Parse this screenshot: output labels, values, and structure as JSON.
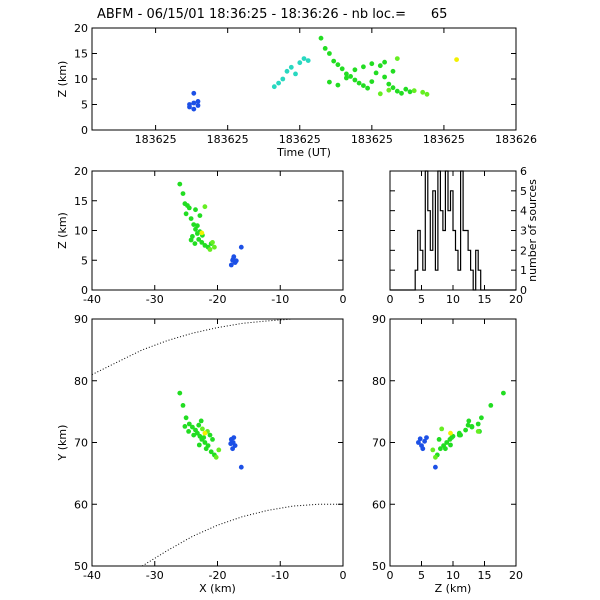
{
  "title": "ABFM - 06/15/01 18:36:25 - 18:36:26 - nb loc.=      65",
  "colors": {
    "blue": "#1c50e6",
    "cyan": "#28d8c0",
    "green": "#22dd22",
    "lgreen": "#66ee22",
    "yellow": "#f2f000"
  },
  "chart_data": [
    {
      "id": "time_z",
      "type": "scatter",
      "xlabel": "Time (UT)",
      "ylabel": "Z (km)",
      "xlim": [
        0,
        1
      ],
      "ylim": [
        0,
        20
      ],
      "x_ticklabels": [
        "183625",
        "183625",
        "183625",
        "183625",
        "183625",
        "183626"
      ],
      "y_ticks": [
        0,
        5,
        10,
        15,
        20
      ],
      "series": [
        {
          "color_key": "blue",
          "points": [
            [
              0.24,
              7.2
            ],
            [
              0.24,
              5.3
            ],
            [
              0.25,
              4.8
            ],
            [
              0.23,
              4.5
            ],
            [
              0.25,
              5.6
            ],
            [
              0.24,
              4.1
            ],
            [
              0.23,
              5.0
            ]
          ]
        },
        {
          "color_key": "cyan",
          "points": [
            [
              0.43,
              8.5
            ],
            [
              0.44,
              9.2
            ],
            [
              0.45,
              10.0
            ],
            [
              0.46,
              11.5
            ],
            [
              0.47,
              12.3
            ],
            [
              0.49,
              13.2
            ],
            [
              0.5,
              14.0
            ],
            [
              0.51,
              13.6
            ],
            [
              0.48,
              11.0
            ]
          ]
        },
        {
          "color_key": "green",
          "points": [
            [
              0.54,
              18.0
            ],
            [
              0.55,
              16.0
            ],
            [
              0.56,
              15.0
            ],
            [
              0.57,
              13.5
            ],
            [
              0.58,
              12.8
            ],
            [
              0.59,
              12.0
            ],
            [
              0.6,
              11.0
            ],
            [
              0.61,
              10.5
            ],
            [
              0.62,
              9.8
            ],
            [
              0.63,
              9.2
            ],
            [
              0.64,
              8.7
            ],
            [
              0.65,
              8.2
            ],
            [
              0.66,
              9.5
            ],
            [
              0.67,
              11.2
            ],
            [
              0.68,
              12.6
            ],
            [
              0.69,
              10.4
            ],
            [
              0.7,
              9.0
            ],
            [
              0.71,
              8.3
            ],
            [
              0.72,
              7.6
            ],
            [
              0.73,
              7.2
            ],
            [
              0.56,
              9.4
            ],
            [
              0.58,
              8.8
            ],
            [
              0.6,
              10.2
            ],
            [
              0.62,
              11.8
            ],
            [
              0.64,
              12.4
            ],
            [
              0.66,
              13.0
            ],
            [
              0.69,
              13.3
            ],
            [
              0.71,
              11.5
            ],
            [
              0.74,
              8.0
            ],
            [
              0.75,
              7.5
            ]
          ]
        },
        {
          "color_key": "lgreen",
          "points": [
            [
              0.76,
              7.7
            ],
            [
              0.78,
              7.4
            ],
            [
              0.79,
              7.0
            ],
            [
              0.72,
              14.0
            ],
            [
              0.7,
              7.8
            ],
            [
              0.68,
              7.1
            ]
          ]
        },
        {
          "color_key": "yellow",
          "points": [
            [
              0.86,
              13.8
            ]
          ]
        }
      ]
    },
    {
      "id": "x_z",
      "type": "scatter",
      "xlabel": "",
      "ylabel": "Z (km)",
      "xlim": [
        -40,
        0
      ],
      "ylim": [
        0,
        20
      ],
      "x_ticks": [
        -40,
        -30,
        -20,
        -10,
        0
      ],
      "y_ticks": [
        0,
        5,
        10,
        15,
        20
      ],
      "series": [
        {
          "color_key": "blue",
          "points": [
            [
              -17.5,
              5.2
            ],
            [
              -17.2,
              4.6
            ],
            [
              -17.8,
              4.2
            ],
            [
              -17.4,
              5.6
            ],
            [
              -16.2,
              7.2
            ],
            [
              -17.0,
              4.9
            ],
            [
              -17.6,
              5.0
            ]
          ]
        },
        {
          "color_key": "green",
          "points": [
            [
              -26.0,
              17.8
            ],
            [
              -25.5,
              16.2
            ],
            [
              -25.2,
              14.5
            ],
            [
              -24.5,
              13.8
            ],
            [
              -24.2,
              12.0
            ],
            [
              -23.8,
              11.0
            ],
            [
              -23.5,
              10.2
            ],
            [
              -23.2,
              9.5
            ],
            [
              -24.0,
              9.0
            ],
            [
              -23.0,
              8.5
            ],
            [
              -22.5,
              8.0
            ],
            [
              -22.0,
              7.5
            ],
            [
              -21.5,
              7.2
            ],
            [
              -21.0,
              7.8
            ],
            [
              -22.8,
              12.5
            ],
            [
              -23.5,
              13.5
            ],
            [
              -24.8,
              14.2
            ],
            [
              -25.0,
              12.8
            ],
            [
              -23.2,
              10.8
            ],
            [
              -22.8,
              9.8
            ],
            [
              -22.4,
              9.2
            ],
            [
              -23.6,
              7.8
            ],
            [
              -24.2,
              8.4
            ]
          ]
        },
        {
          "color_key": "lgreen",
          "points": [
            [
              -20.5,
              7.2
            ],
            [
              -21.2,
              6.8
            ],
            [
              -22.0,
              14.0
            ],
            [
              -20.8,
              8.0
            ]
          ]
        },
        {
          "color_key": "yellow",
          "points": [
            [
              -22.5,
              9.6
            ]
          ]
        }
      ]
    },
    {
      "id": "histogram",
      "type": "bar",
      "xlabel": "",
      "ylabel": "number of sources",
      "xlim": [
        0,
        20
      ],
      "ylim": [
        0,
        6
      ],
      "x_ticks": [
        0,
        5,
        10,
        15,
        20
      ],
      "y_ticks": [
        0,
        1,
        2,
        3,
        4,
        5,
        6
      ],
      "bin_width": 0.4,
      "bin_start": 0,
      "counts": [
        0,
        0,
        0,
        0,
        0,
        0,
        0,
        0,
        0,
        0,
        1,
        3,
        2,
        1,
        6,
        4,
        2,
        5,
        1,
        6,
        4,
        3,
        6,
        4,
        5,
        3,
        2,
        1,
        6,
        3,
        3,
        2,
        1,
        0,
        2,
        1,
        0,
        0,
        0,
        0,
        0,
        0,
        0,
        0,
        0,
        0,
        0,
        0,
        0,
        0
      ]
    },
    {
      "id": "x_y",
      "type": "scatter",
      "xlabel": "X (km)",
      "ylabel": "Y (km)",
      "xlim": [
        -40,
        0
      ],
      "ylim": [
        50,
        90
      ],
      "x_ticks": [
        -40,
        -30,
        -20,
        -10,
        0
      ],
      "y_ticks": [
        50,
        60,
        70,
        80,
        90
      ],
      "arc_upper": [
        [
          -40,
          81
        ],
        [
          -36,
          83
        ],
        [
          -32,
          85
        ],
        [
          -28,
          86.5
        ],
        [
          -24,
          87.7
        ],
        [
          -20,
          88.6
        ],
        [
          -16,
          89.3
        ],
        [
          -12,
          89.7
        ],
        [
          -8,
          90
        ]
      ],
      "arc_lower": [
        [
          -32,
          50
        ],
        [
          -28,
          52.5
        ],
        [
          -24,
          54.8
        ],
        [
          -20,
          56.6
        ],
        [
          -16,
          58
        ],
        [
          -12,
          59
        ],
        [
          -8,
          59.7
        ],
        [
          -4,
          60
        ],
        [
          0,
          60
        ]
      ],
      "series": [
        {
          "color_key": "blue",
          "points": [
            [
              -17.8,
              70.5
            ],
            [
              -17.5,
              70.0
            ],
            [
              -17.2,
              69.5
            ],
            [
              -17.6,
              69.0
            ],
            [
              -17.4,
              70.8
            ],
            [
              -16.2,
              66.0
            ],
            [
              -17.9,
              69.8
            ]
          ]
        },
        {
          "color_key": "green",
          "points": [
            [
              -26.0,
              78.0
            ],
            [
              -25.5,
              76.0
            ],
            [
              -25.0,
              74.0
            ],
            [
              -24.5,
              73.0
            ],
            [
              -24.0,
              72.5
            ],
            [
              -23.5,
              72.0
            ],
            [
              -23.2,
              71.5
            ],
            [
              -22.8,
              71.0
            ],
            [
              -22.5,
              70.5
            ],
            [
              -22.0,
              70.0
            ],
            [
              -21.5,
              69.5
            ],
            [
              -21.0,
              68.5
            ],
            [
              -20.5,
              68.0
            ],
            [
              -22.6,
              73.5
            ],
            [
              -23.8,
              71.2
            ],
            [
              -22.2,
              70.8
            ],
            [
              -24.6,
              71.8
            ],
            [
              -21.8,
              69.0
            ],
            [
              -23.0,
              72.8
            ],
            [
              -20.8,
              70.5
            ],
            [
              -25.2,
              72.6
            ],
            [
              -22.9,
              69.6
            ],
            [
              -21.2,
              71.2
            ]
          ]
        },
        {
          "color_key": "lgreen",
          "points": [
            [
              -20.2,
              67.6
            ],
            [
              -19.8,
              68.8
            ],
            [
              -21.6,
              71.8
            ],
            [
              -22.4,
              72.2
            ]
          ]
        },
        {
          "color_key": "yellow",
          "points": [
            [
              -22.0,
              71.5
            ]
          ]
        }
      ]
    },
    {
      "id": "z_y",
      "type": "scatter",
      "xlabel": "Z (km)",
      "ylabel": "",
      "xlim": [
        0,
        20
      ],
      "ylim": [
        50,
        90
      ],
      "x_ticks": [
        0,
        5,
        10,
        15,
        20
      ],
      "y_ticks": [
        50,
        60,
        70,
        80,
        90
      ],
      "series": [
        {
          "color_key": "blue",
          "points": [
            [
              4.5,
              70.0
            ],
            [
              5.0,
              69.5
            ],
            [
              5.5,
              70.2
            ],
            [
              5.2,
              69.0
            ],
            [
              4.8,
              70.6
            ],
            [
              7.2,
              66.0
            ],
            [
              5.8,
              70.8
            ]
          ]
        },
        {
          "color_key": "green",
          "points": [
            [
              18.0,
              78.0
            ],
            [
              16.0,
              76.0
            ],
            [
              14.5,
              74.0
            ],
            [
              14.0,
              73.0
            ],
            [
              13.0,
              72.5
            ],
            [
              12.0,
              72.0
            ],
            [
              11.0,
              71.5
            ],
            [
              10.0,
              71.0
            ],
            [
              9.5,
              70.5
            ],
            [
              9.0,
              70.0
            ],
            [
              8.5,
              69.5
            ],
            [
              8.0,
              69.0
            ],
            [
              7.5,
              68.0
            ],
            [
              12.5,
              73.5
            ],
            [
              11.0,
              71.2
            ],
            [
              9.8,
              70.8
            ],
            [
              14.2,
              71.8
            ],
            [
              8.8,
              69.0
            ],
            [
              12.4,
              72.8
            ],
            [
              7.8,
              70.5
            ],
            [
              13.0,
              72.6
            ],
            [
              9.6,
              69.6
            ],
            [
              11.2,
              71.2
            ]
          ]
        },
        {
          "color_key": "lgreen",
          "points": [
            [
              7.2,
              67.6
            ],
            [
              6.8,
              68.8
            ],
            [
              14.0,
              71.8
            ],
            [
              8.2,
              72.2
            ]
          ]
        },
        {
          "color_key": "yellow",
          "points": [
            [
              9.6,
              71.5
            ]
          ]
        }
      ]
    }
  ]
}
